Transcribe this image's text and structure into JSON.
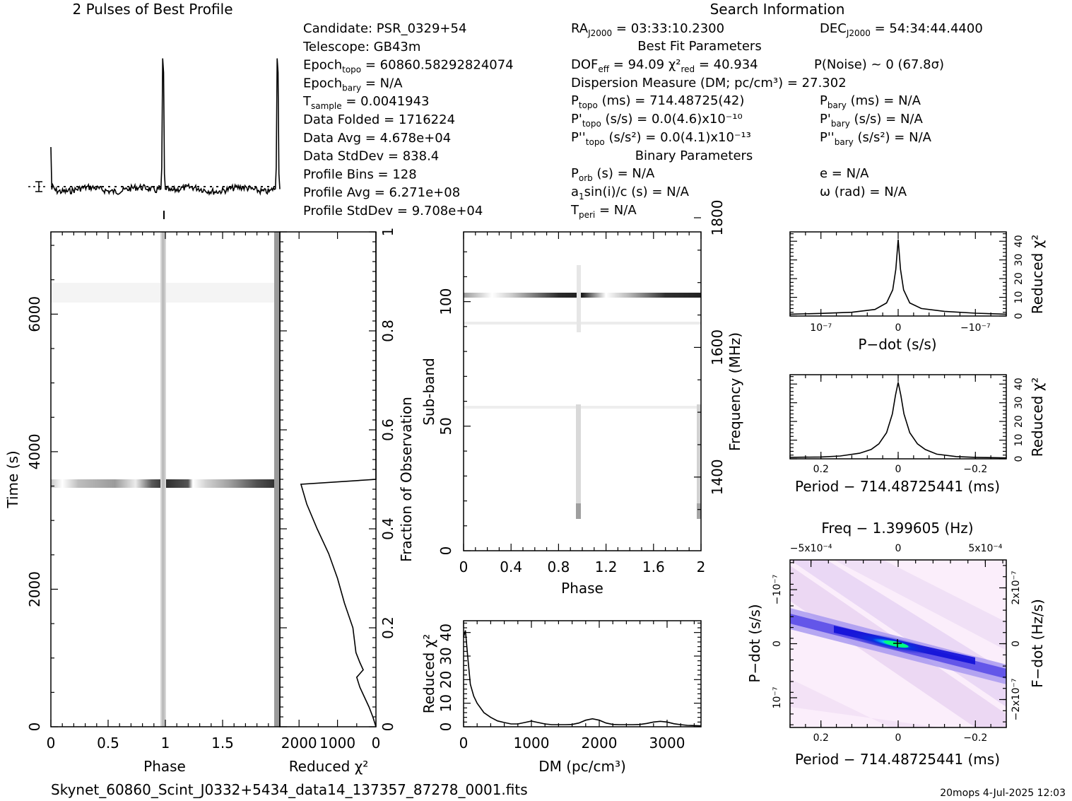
{
  "chart_data": {
    "type": "line",
    "figure": "prepfold diagnostic plot",
    "footer": {
      "filename": "Skynet_60860_Scint_J0332+5434_data14_137357_87278_0001.fits",
      "right": "20mops   4-Jul-2025 12:03"
    },
    "profile": {
      "title": "2 Pulses of Best Profile",
      "bins_per_pulse": 128,
      "peak_phase": 0.98,
      "baseline": 627100000.0,
      "stddev": 97080.0
    },
    "search_info": {
      "title": "Search Information",
      "rows": [
        "Candidate:  PSR_0329+54",
        "Telescope:  GB43m",
        "Epoch$topo$ = 60860.58292824074",
        "Epoch$bary$ = N/A",
        "T$sample$        =  0.0041943",
        "Data Folded     =  1716224",
        "Data Avg        =  4.678e+04",
        "Data StdDev     =  838.4",
        "Profile Bins    =  128",
        "Profile Avg     =  6.271e+08",
        "Profile StdDev  =  9.708e+04"
      ],
      "ra": "RA$J2000$ = 03:33:10.2300",
      "dec": "DEC$J2000$ = 54:34:44.4400",
      "best_fit_title": "Best Fit Parameters",
      "dof_line": "DOF$eff$ = 94.09  χ²$red$ = 40.934",
      "pnoise": "P(Noise) ~ 0    (67.8σ)",
      "dm_line": "Dispersion Measure (DM; pc/cm³) = 27.302",
      "ptopo": "P$topo$ (ms) =  714.48725(42)",
      "pdtopo": "P'$topo$ (s/s) = 0.0(4.6)x10⁻¹⁰",
      "pddtopo": "P''$topo$ (s/s²) = 0.0(4.1)x10⁻¹³",
      "pbary": "P$bary$ (ms) = N/A",
      "pdbary": "P'$bary$ (s/s) = N/A",
      "pddbary": "P''$bary$ (s/s²) = N/A",
      "binary_title": "Binary Parameters",
      "porb": "P$orb$ (s) = N/A",
      "asini": "a$1$sin(i)/c (s) = N/A",
      "tperi": "T$peri$ = N/A",
      "ecc": "e = N/A",
      "omega": "ω (rad) = N/A"
    },
    "time_phase": {
      "xlabel": "Phase",
      "ylabel": "Time (s)",
      "xlim": [
        0,
        2
      ],
      "ylim": [
        0,
        7196
      ],
      "xticks": [
        "0",
        "0.5",
        "1",
        "1.5"
      ],
      "yticks": [
        "0",
        "2000",
        "4000",
        "6000"
      ],
      "right_label": "Fraction of Observation",
      "right_ticks": [
        "0",
        "0.2",
        "0.4",
        "0.6",
        "0.8",
        "1"
      ],
      "rfi_band_time": 3540
    },
    "chi_vs_time": {
      "xlabel": "Reduced χ²",
      "xticks": [
        "2000",
        "1000",
        "0"
      ],
      "xlim": [
        2500,
        0
      ],
      "fraction": [
        0,
        0.02,
        0.04,
        0.06,
        0.08,
        0.1,
        0.115,
        0.13,
        0.15,
        0.2,
        0.25,
        0.3,
        0.35,
        0.4,
        0.45,
        0.49,
        0.5
      ],
      "chi2": [
        0,
        80,
        180,
        300,
        420,
        500,
        330,
        420,
        520,
        600,
        820,
        1000,
        1230,
        1530,
        1800,
        1950,
        0
      ]
    },
    "subband_phase": {
      "xlabel": "Phase",
      "ylabel": "Sub-band",
      "right_label": "Frequency (MHz)",
      "xticks": [
        "0",
        "0.4",
        "0.8",
        "1.2",
        "1.6",
        "2"
      ],
      "yticks": [
        "0",
        "50",
        "100"
      ],
      "freq_ticks": [
        "1400",
        "1600",
        "1800"
      ],
      "xlim": [
        0,
        2
      ],
      "ylim": [
        0,
        128
      ],
      "rfi_subband": 103
    },
    "chi_vs_dm": {
      "xlabel": "DM (pc/cm³)",
      "ylabel": "Reduced χ²",
      "xticks": [
        "0",
        "1000",
        "2000",
        "3000"
      ],
      "yticks": [
        "0",
        "10",
        "20",
        "30",
        "40"
      ],
      "xlim": [
        0,
        3500
      ],
      "ylim": [
        0,
        45
      ],
      "dm": [
        0,
        27,
        60,
        100,
        150,
        200,
        300,
        400,
        500,
        600,
        700,
        800,
        900,
        1000,
        1100,
        1200,
        1300,
        1400,
        1500,
        1600,
        1700,
        1800,
        1900,
        2000,
        2100,
        2200,
        2300,
        2400,
        2500,
        2600,
        2700,
        2800,
        2900,
        3000,
        3100,
        3200,
        3300,
        3400,
        3500
      ],
      "chi2": [
        38,
        40.9,
        30,
        18,
        13,
        10,
        6,
        4,
        2.5,
        1.8,
        1.2,
        1.2,
        1.8,
        2.4,
        1.8,
        1.2,
        0.9,
        0.9,
        0.9,
        1.0,
        1.6,
        2.8,
        3.4,
        2.8,
        1.6,
        1.0,
        0.9,
        0.9,
        0.9,
        1.0,
        1.4,
        2.0,
        2.3,
        2.0,
        1.3,
        0.9,
        0.6,
        0.5,
        0.4
      ]
    },
    "chi_vs_pdot": {
      "xlabel": "P−dot (s/s)",
      "ylabel": "Reduced χ²",
      "xticks": [
        "10⁻⁷",
        "0",
        "−10⁻⁷"
      ],
      "yticks": [
        "0",
        "10",
        "20",
        "30",
        "40"
      ],
      "xlim": [
        1.4e-07,
        -1.4e-07
      ],
      "ylim": [
        0,
        45
      ],
      "pdot": [
        1.4e-07,
        1e-07,
        6e-08,
        3e-08,
        1.5e-08,
        7e-09,
        3e-09,
        0,
        -3e-09,
        -7e-09,
        -1.5e-08,
        -3e-08,
        -6e-08,
        -1e-07,
        -1.4e-07
      ],
      "chi2": [
        1.0,
        1.4,
        2.0,
        3.5,
        7,
        14,
        25,
        40.9,
        25,
        14,
        7,
        4,
        2.5,
        1.5,
        1.0
      ]
    },
    "chi_vs_period": {
      "xlabel": "Period − 714.48725441 (ms)",
      "ylabel": "Reduced χ²",
      "xticks": [
        "0.2",
        "0",
        "−0.2"
      ],
      "yticks": [
        "0",
        "10",
        "20",
        "30",
        "40"
      ],
      "xlim": [
        0.28,
        -0.28
      ],
      "ylim": [
        0,
        45
      ],
      "period": [
        0.28,
        0.2,
        0.15,
        0.1,
        0.07,
        0.05,
        0.03,
        0.015,
        0.007,
        0,
        -0.007,
        -0.015,
        -0.03,
        -0.05,
        -0.07,
        -0.1,
        -0.15,
        -0.2,
        -0.28
      ],
      "chi2": [
        0.8,
        1.0,
        1.5,
        3,
        5,
        8,
        14,
        24,
        34,
        40.9,
        34,
        24,
        14,
        8,
        5,
        2.5,
        1.2,
        0.8,
        0.5
      ]
    },
    "pp_dot_plane": {
      "title": "Freq − 1.399605 (Hz)",
      "top_ticks": [
        "−5x10⁻⁴",
        "0",
        "5x10⁻⁴"
      ],
      "xlabel": "Period − 714.48725441 (ms)",
      "xticks": [
        "0.2",
        "0",
        "−0.2"
      ],
      "ylabel": "P−dot (s/s)",
      "yticks": [
        "−10⁻⁷",
        "0",
        "10⁻⁷"
      ],
      "right_label": "F−dot (Hz/s)",
      "right_ticks": [
        "2x10⁻⁷",
        "0",
        "−2x10⁻⁷"
      ],
      "colors": [
        "#ffffff",
        "#f3d8f3",
        "#b6a4ee",
        "#5a4ee8",
        "#1010d8",
        "#00c8ff",
        "#00ff00"
      ]
    }
  }
}
